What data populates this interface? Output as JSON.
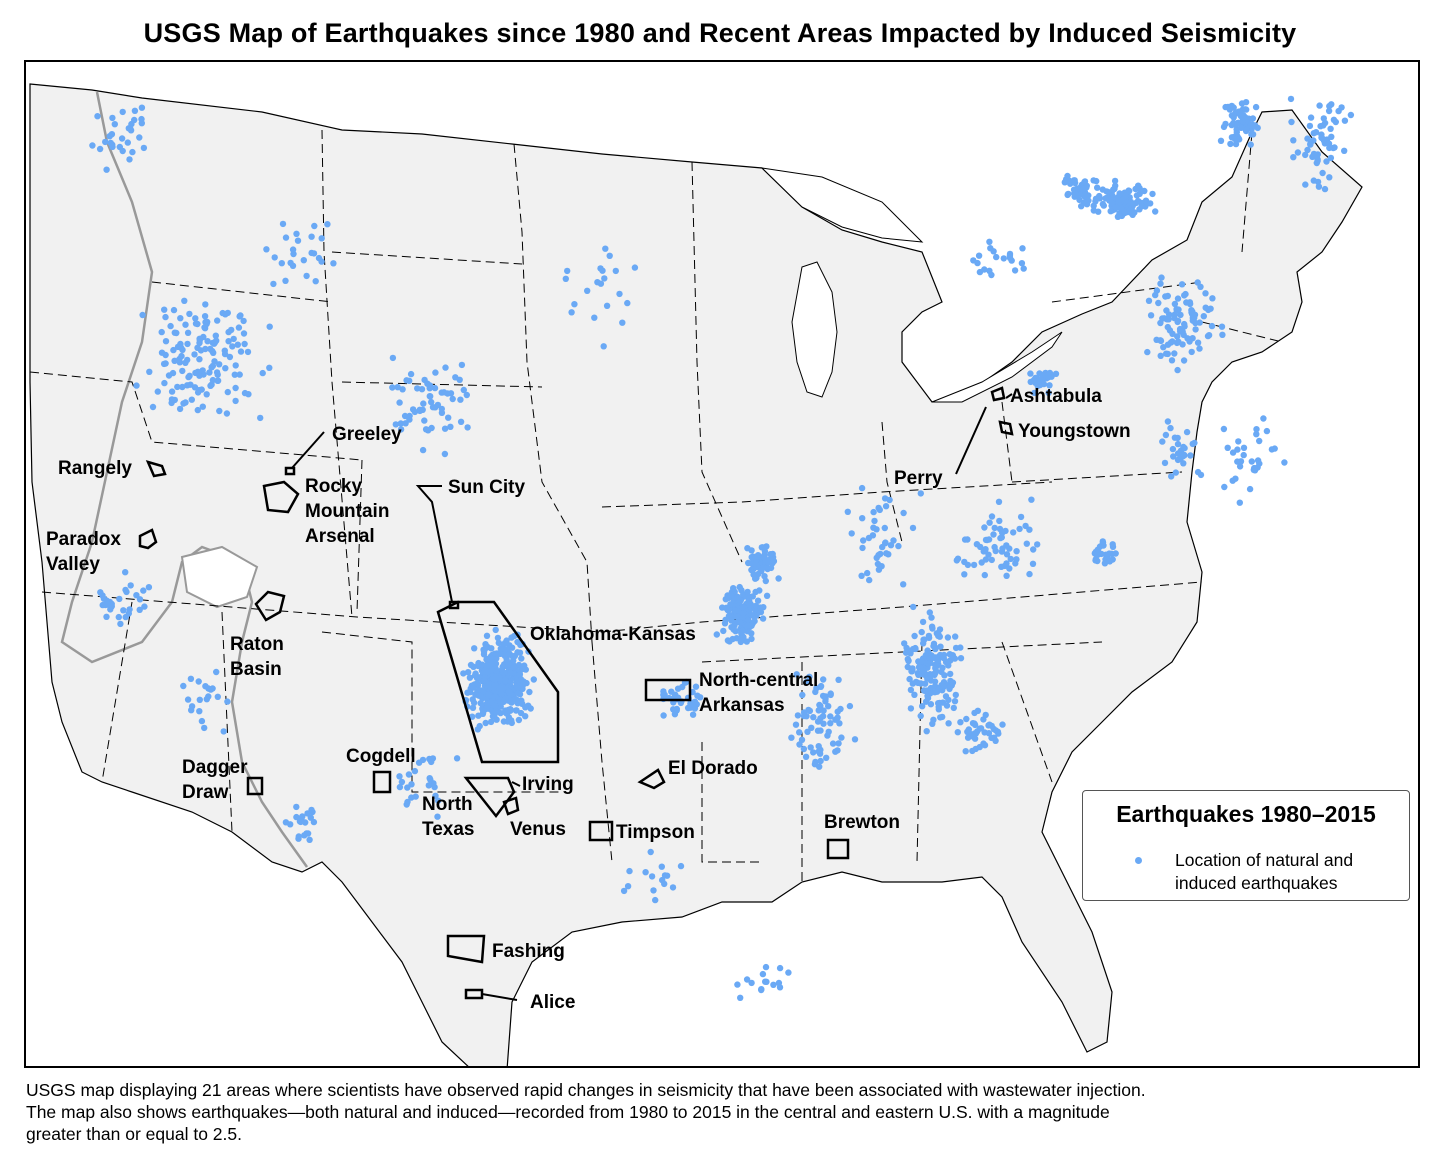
{
  "title": "USGS Map of Earthquakes since 1980 and Recent Areas Impacted by Induced Seismicity",
  "legend": {
    "title": "Earthquakes 1980–2015",
    "items": [
      {
        "label": "Location of natural and induced earthquakes",
        "color": "#6aa9f5"
      }
    ]
  },
  "caption": [
    "USGS map displaying 21 areas where scientists have observed rapid changes in seismicity that have been associated with wastewater injection.",
    "The map also shows earthquakes—both natural and induced—recorded from 1980 to 2015 in the central and eastern U.S. with a magnitude",
    "greater than or equal to 2.5."
  ],
  "colors": {
    "earthquake": "#6aa9f5",
    "land": "#f1f1f1",
    "study_boundary": "#999999"
  },
  "areas": {
    "greeley": "Greeley",
    "rangely": "Rangely",
    "rocky_mountain_arsenal": [
      "Rocky",
      "Mountain",
      "Arsenal"
    ],
    "sun_city": "Sun City",
    "paradox_valley": [
      "Paradox",
      "Valley"
    ],
    "raton_basin": [
      "Raton",
      "Basin"
    ],
    "oklahoma_kansas": "Oklahoma-Kansas",
    "north_central_arkansas": [
      "North-central",
      "Arkansas"
    ],
    "cogdell": "Cogdell",
    "dagger_draw": [
      "Dagger",
      "Draw"
    ],
    "irving": "Irving",
    "north_texas": [
      "North",
      "Texas"
    ],
    "venus": "Venus",
    "el_dorado": "El Dorado",
    "timpson": "Timpson",
    "brewton": "Brewton",
    "fashing": "Fashing",
    "alice": "Alice",
    "ashtabula": "Ashtabula",
    "youngstown": "Youngstown",
    "perry": "Perry"
  }
}
